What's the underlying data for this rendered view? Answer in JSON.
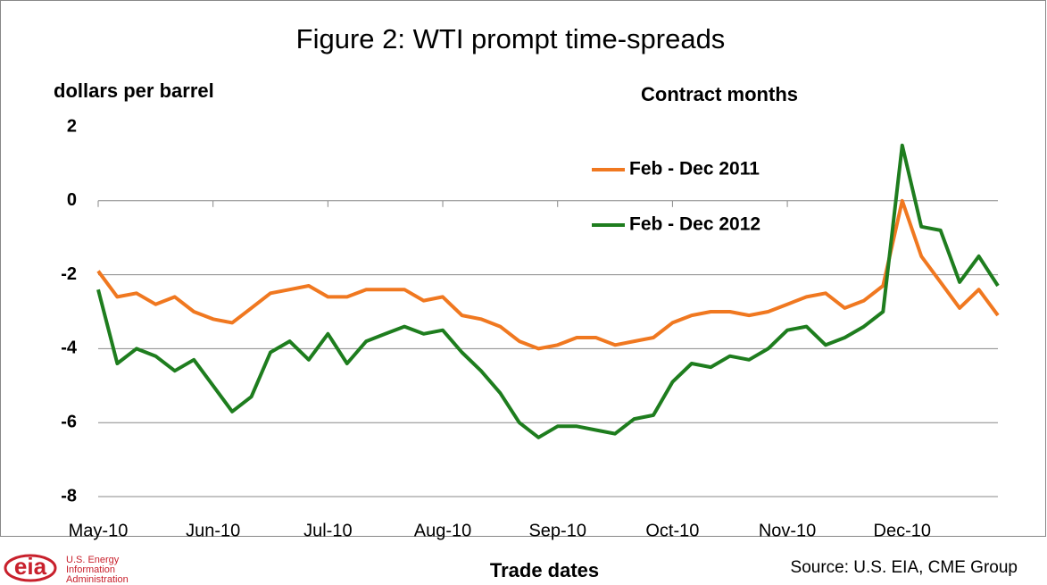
{
  "chart_data": {
    "type": "line",
    "title": "Figure 2: WTI prompt time-spreads",
    "y_label": "dollars per barrel",
    "x_label": "Trade dates",
    "legend_title": "Contract months",
    "source": "Source:  U.S. EIA, CME Group",
    "logo": {
      "mark": "eia",
      "lines": [
        "U.S. Energy",
        "Information",
        "Administration"
      ]
    },
    "categories": [
      "May-10",
      null,
      null,
      null,
      null,
      null,
      "Jun-10",
      null,
      null,
      null,
      null,
      null,
      "Jul-10",
      null,
      null,
      null,
      null,
      null,
      "Aug-10",
      null,
      null,
      null,
      null,
      null,
      "Sep-10",
      null,
      null,
      null,
      null,
      null,
      "Oct-10",
      null,
      null,
      null,
      null,
      null,
      "Nov-10",
      null,
      null,
      null,
      null,
      null,
      "Dec-10",
      null,
      null,
      null,
      null,
      null
    ],
    "series": [
      {
        "name": "Feb - Dec 2011",
        "color": "#f07820",
        "values": [
          -1.9,
          -2.6,
          -2.5,
          -2.8,
          -2.6,
          -3.0,
          -3.2,
          -3.3,
          -2.9,
          -2.5,
          -2.4,
          -2.3,
          -2.6,
          -2.6,
          -2.4,
          -2.4,
          -2.4,
          -2.7,
          -2.6,
          -3.1,
          -3.2,
          -3.4,
          -3.8,
          -4.0,
          -3.9,
          -3.7,
          -3.7,
          -3.9,
          -3.8,
          -3.7,
          -3.3,
          -3.1,
          -3.0,
          -3.0,
          -3.1,
          -3.0,
          -2.8,
          -2.6,
          -2.5,
          -2.9,
          -2.7,
          -2.3,
          0.0,
          -1.5,
          -2.2,
          -2.9,
          -2.4,
          -3.1
        ]
      },
      {
        "name": "Feb - Dec 2012",
        "color": "#1e7d1e",
        "values": [
          -2.4,
          -4.4,
          -4.0,
          -4.2,
          -4.6,
          -4.3,
          -5.0,
          -5.7,
          -5.3,
          -4.1,
          -3.8,
          -4.3,
          -3.6,
          -4.4,
          -3.8,
          -3.6,
          -3.4,
          -3.6,
          -3.5,
          -4.1,
          -4.6,
          -5.2,
          -6.0,
          -6.4,
          -6.1,
          -6.1,
          -6.2,
          -6.3,
          -5.9,
          -5.8,
          -4.9,
          -4.4,
          -4.5,
          -4.2,
          -4.3,
          -4.0,
          -3.5,
          -3.4,
          -3.9,
          -3.7,
          -3.4,
          -3.0,
          1.5,
          -0.7,
          -0.8,
          -2.2,
          -1.5,
          -2.3
        ]
      }
    ],
    "ylim": [
      -8,
      2
    ],
    "yticks": [
      2,
      0,
      -2,
      -4,
      -6,
      -8
    ],
    "grid": true
  }
}
